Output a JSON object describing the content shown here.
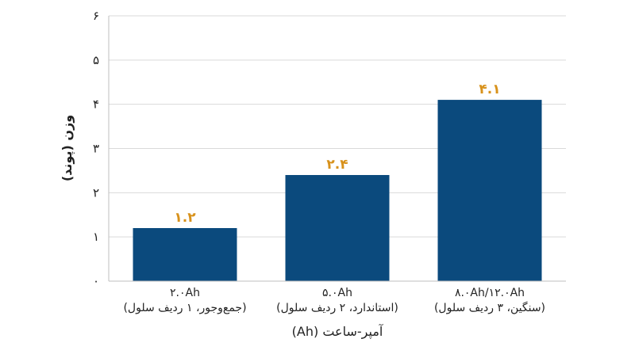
{
  "chart_data": {
    "type": "bar",
    "categories": [
      {
        "line1": "۲.۰Ah",
        "line2": "(جمع‌وجور، ۱ ردیف سلول)"
      },
      {
        "line1": "۵.۰Ah",
        "line2": "(استاندارد، ۲ ردیف سلول)"
      },
      {
        "line1": "۸.۰Ah/۱۲.۰Ah",
        "line2": "(سنگین، ۳ ردیف سلول)"
      }
    ],
    "values": [
      1.2,
      2.4,
      4.1
    ],
    "value_labels": [
      "۱.۲",
      "۲.۴",
      "۴.۱"
    ],
    "xlabel": "آمپر-ساعت (Ah)",
    "ylabel": "وزن (پوند)",
    "ylim": [
      0,
      6
    ],
    "yticks": [
      0,
      1,
      2,
      3,
      4,
      5,
      6
    ],
    "ytick_labels": [
      "۰",
      "۱",
      "۲",
      "۳",
      "۴",
      "۵",
      "۶"
    ],
    "grid": true,
    "colors": {
      "bar": "#0b4a7d",
      "label": "#d8921c",
      "grid": "#d9d9d9",
      "axis": "#bfbfbf"
    }
  }
}
